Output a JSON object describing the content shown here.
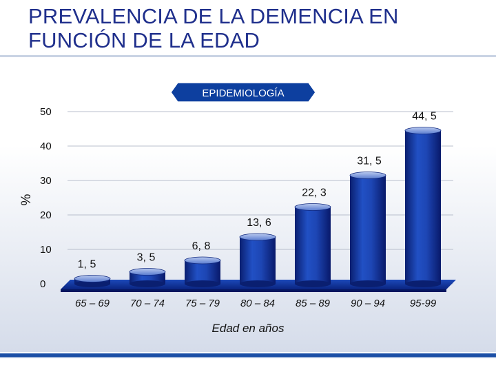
{
  "slide": {
    "title_line1": "PREVALENCIA DE LA DEMENCIA EN",
    "title_line2": "FUNCIÓN DE LA EDAD",
    "badge": "EPIDEMIOLOGÍA"
  },
  "colors": {
    "title": "#1f2f8c",
    "bar": "#1a3fa8",
    "bar_dark": "#0b2275",
    "bar_top": "#8fa6dc",
    "badge": "#0d3f9f"
  },
  "chart_data": {
    "type": "bar",
    "categories": [
      "65 – 69",
      "70 – 74",
      "75 – 79",
      "80 – 84",
      "85 – 89",
      "90 – 94",
      "95-99"
    ],
    "values": [
      1.5,
      3.5,
      6.8,
      13.6,
      22.3,
      31.5,
      44.5
    ],
    "value_labels": [
      "1, 5",
      "3, 5",
      "6, 8",
      "13, 6",
      "22, 3",
      "31, 5",
      "44, 5"
    ],
    "y_ticks": [
      "50",
      "40",
      "30",
      "20",
      "10",
      "0"
    ],
    "y_tick_values": [
      50,
      40,
      30,
      20,
      10,
      0
    ],
    "ylim": [
      0,
      50
    ],
    "xlabel": "Edad en años",
    "ylabel": "%",
    "grid": true,
    "legend": "none"
  }
}
